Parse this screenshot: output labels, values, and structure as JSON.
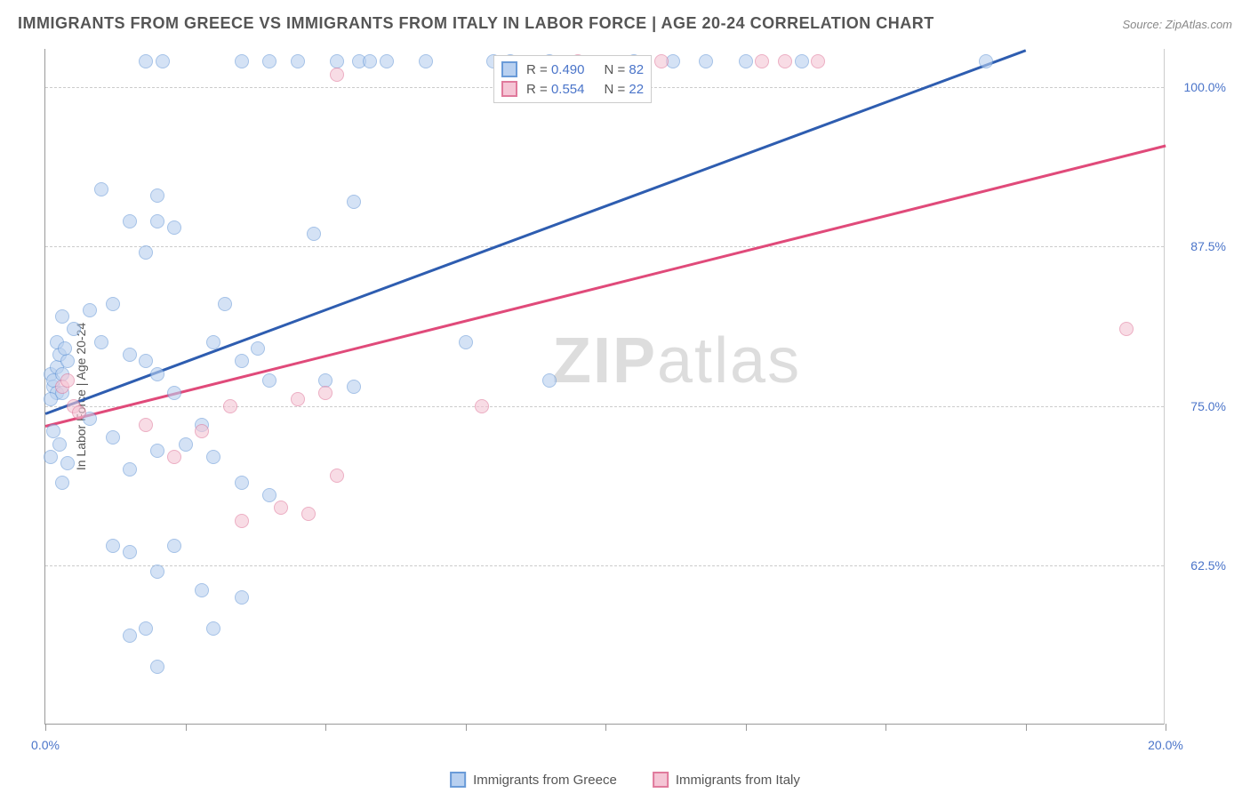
{
  "title": "IMMIGRANTS FROM GREECE VS IMMIGRANTS FROM ITALY IN LABOR FORCE | AGE 20-24 CORRELATION CHART",
  "source": "Source: ZipAtlas.com",
  "y_axis_label": "In Labor Force | Age 20-24",
  "watermark_bold": "ZIP",
  "watermark_light": "atlas",
  "chart": {
    "type": "scatter",
    "xlim": [
      0,
      20
    ],
    "ylim": [
      50,
      103
    ],
    "xticks": [
      0,
      2.5,
      5,
      7.5,
      10,
      12.5,
      15,
      17.5,
      20
    ],
    "xtick_labels": {
      "0": "0.0%",
      "20": "20.0%"
    },
    "yticks": [
      62.5,
      75,
      87.5,
      100
    ],
    "ytick_labels": [
      "62.5%",
      "75.0%",
      "87.5%",
      "100.0%"
    ],
    "background_color": "#ffffff",
    "grid_color": "#cccccc",
    "axis_color": "#999999",
    "tick_label_color": "#4a74c9",
    "marker_radius": 8,
    "marker_stroke_width": 1.5,
    "series": [
      {
        "name": "Immigrants from Greece",
        "color_fill": "#b8d0f0",
        "color_stroke": "#6a9bd8",
        "color_line": "#2e5db0",
        "fill_opacity": 0.6,
        "R": "0.490",
        "N": "82",
        "trend": {
          "x1": 0,
          "y1": 74.5,
          "x2": 17.5,
          "y2": 103
        },
        "points": [
          [
            0.1,
            77.5
          ],
          [
            0.15,
            76.5
          ],
          [
            0.2,
            78
          ],
          [
            0.15,
            77
          ],
          [
            0.25,
            79
          ],
          [
            0.3,
            77.5
          ],
          [
            0.2,
            76
          ],
          [
            0.1,
            75.5
          ],
          [
            0.3,
            76
          ],
          [
            0.4,
            78.5
          ],
          [
            0.2,
            80
          ],
          [
            0.35,
            79.5
          ],
          [
            0.5,
            81
          ],
          [
            0.3,
            82
          ],
          [
            0.15,
            73
          ],
          [
            0.25,
            72
          ],
          [
            0.4,
            70.5
          ],
          [
            0.3,
            69
          ],
          [
            0.1,
            71
          ],
          [
            1.0,
            92
          ],
          [
            1.5,
            89.5
          ],
          [
            1.8,
            87
          ],
          [
            2.0,
            91.5
          ],
          [
            2.0,
            89.5
          ],
          [
            2.3,
            89
          ],
          [
            0.8,
            82.5
          ],
          [
            1.0,
            80
          ],
          [
            1.2,
            83
          ],
          [
            1.5,
            79
          ],
          [
            1.8,
            78.5
          ],
          [
            2.0,
            77.5
          ],
          [
            2.3,
            76
          ],
          [
            0.8,
            74
          ],
          [
            1.2,
            72.5
          ],
          [
            1.5,
            70
          ],
          [
            2.0,
            71.5
          ],
          [
            2.5,
            72
          ],
          [
            2.8,
            73.5
          ],
          [
            1.2,
            64
          ],
          [
            1.5,
            63.5
          ],
          [
            2.0,
            62
          ],
          [
            2.3,
            64
          ],
          [
            2.8,
            60.5
          ],
          [
            3.5,
            60
          ],
          [
            1.5,
            57
          ],
          [
            1.8,
            57.5
          ],
          [
            3.0,
            57.5
          ],
          [
            2.0,
            54.5
          ],
          [
            3.2,
            83
          ],
          [
            3.0,
            80
          ],
          [
            3.5,
            78.5
          ],
          [
            3.8,
            79.5
          ],
          [
            4.0,
            77
          ],
          [
            3.0,
            71
          ],
          [
            3.5,
            69
          ],
          [
            4.0,
            68
          ],
          [
            4.5,
            102
          ],
          [
            5.2,
            102
          ],
          [
            5.6,
            102
          ],
          [
            5.8,
            102
          ],
          [
            6.1,
            102
          ],
          [
            6.8,
            102
          ],
          [
            1.8,
            102
          ],
          [
            2.1,
            102
          ],
          [
            3.5,
            102
          ],
          [
            4.0,
            102
          ],
          [
            4.8,
            88.5
          ],
          [
            5.5,
            91
          ],
          [
            5.0,
            77
          ],
          [
            5.5,
            76.5
          ],
          [
            8.0,
            102
          ],
          [
            8.3,
            102
          ],
          [
            9.0,
            102
          ],
          [
            10.5,
            102
          ],
          [
            11.2,
            102
          ],
          [
            11.8,
            102
          ],
          [
            12.5,
            102
          ],
          [
            13.5,
            102
          ],
          [
            16.8,
            102
          ],
          [
            9.0,
            77
          ],
          [
            7.5,
            80
          ]
        ]
      },
      {
        "name": "Immigrants from Italy",
        "color_fill": "#f5c5d5",
        "color_stroke": "#e07a9c",
        "color_line": "#e04a7a",
        "fill_opacity": 0.6,
        "R": "0.554",
        "N": "22",
        "trend": {
          "x1": 0,
          "y1": 73.5,
          "x2": 20,
          "y2": 95.5
        },
        "points": [
          [
            0.3,
            76.5
          ],
          [
            0.5,
            75
          ],
          [
            0.4,
            77
          ],
          [
            0.6,
            74.5
          ],
          [
            1.8,
            73.5
          ],
          [
            2.8,
            73
          ],
          [
            3.3,
            75
          ],
          [
            2.3,
            71
          ],
          [
            3.5,
            66
          ],
          [
            4.2,
            67
          ],
          [
            4.7,
            66.5
          ],
          [
            5.2,
            69.5
          ],
          [
            7.8,
            75
          ],
          [
            5.2,
            101
          ],
          [
            12.8,
            102
          ],
          [
            13.2,
            102
          ],
          [
            13.8,
            102
          ],
          [
            5.0,
            76
          ],
          [
            4.5,
            75.5
          ],
          [
            19.3,
            81
          ],
          [
            11.0,
            102
          ],
          [
            9.5,
            102
          ]
        ]
      }
    ]
  },
  "legend_top": {
    "r_label": "R =",
    "n_label": "N ="
  },
  "legend_bottom": {
    "items": [
      "Immigrants from Greece",
      "Immigrants from Italy"
    ]
  }
}
